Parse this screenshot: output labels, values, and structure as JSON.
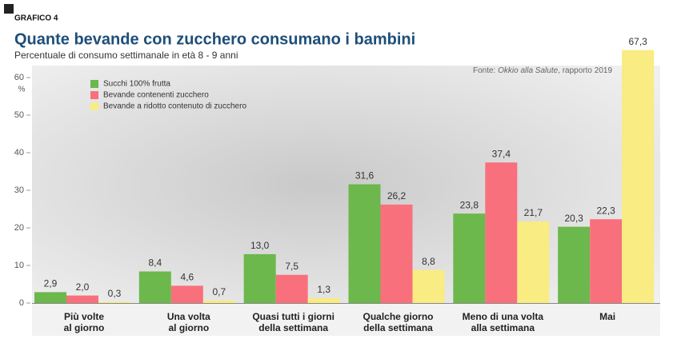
{
  "chart_data": {
    "type": "bar",
    "badge": "GRAFICO 4",
    "title": "Quante bevande con zucchero consumano i bambini",
    "subtitle": "Percentuale di consumo settimanale in età 8 - 9 anni",
    "source": {
      "prefix": "Fonte:",
      "name": "Okkio alla Salute",
      "suffix": ", rapporto 2019"
    },
    "y_label": "%",
    "categories": [
      "Più volte\nal giorno",
      "Una volta\nal giorno",
      "Quasi tutti i giorni\ndella settimana",
      "Qualche giorno\ndella settimana",
      "Meno di una volta\nalla settimana",
      "Mai"
    ],
    "series": [
      {
        "name": "Succhi 100% frutta",
        "color": "#6cb84c",
        "values": [
          2.9,
          8.4,
          13.0,
          31.6,
          23.8,
          20.3
        ],
        "value_labels": [
          "2,9",
          "8,4",
          "13,0",
          "31,6",
          "23,8",
          "20,3"
        ]
      },
      {
        "name": "Bevande contenenti zucchero",
        "color": "#f8707c",
        "values": [
          2.0,
          4.6,
          7.5,
          26.2,
          37.4,
          22.3
        ],
        "value_labels": [
          "2,0",
          "4,6",
          "7,5",
          "26,2",
          "37,4",
          "22,3"
        ]
      },
      {
        "name": "Bevande a ridotto contenuto di zucchero",
        "color": "#f8ec82",
        "values": [
          0.3,
          0.7,
          1.3,
          8.8,
          21.7,
          67.3
        ],
        "value_labels": [
          "0,3",
          "0,7",
          "1,3",
          "8,8",
          "21,7",
          "67,3"
        ]
      }
    ],
    "ylim": [
      0,
      60
    ],
    "yticks": [
      0,
      10,
      20,
      30,
      40,
      50,
      60
    ]
  }
}
